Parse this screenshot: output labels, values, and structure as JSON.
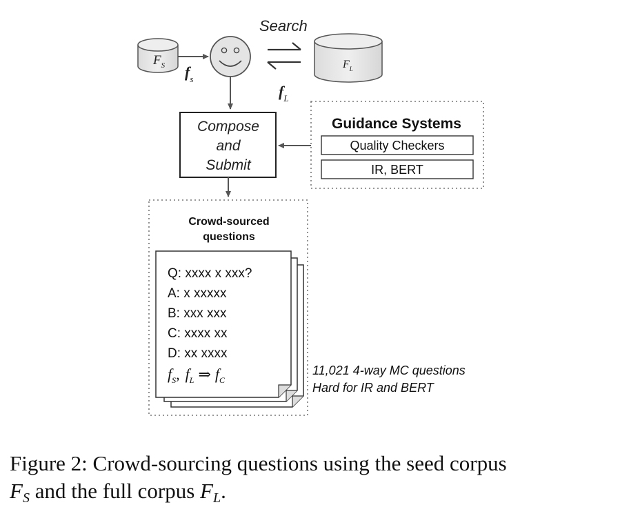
{
  "diagram": {
    "search_label": "Search",
    "seed_corpus": {
      "base": "F",
      "sub": "S"
    },
    "full_corpus": {
      "base": "F",
      "sub": "L"
    },
    "fact_s": {
      "base": "f",
      "sub": "s"
    },
    "fact_l": {
      "base": "f",
      "sub": "L"
    },
    "compose_lines": [
      "Compose",
      "and",
      "Submit"
    ],
    "guidance": {
      "title": "Guidance Systems",
      "items": [
        "Quality Checkers",
        "IR, BERT"
      ]
    },
    "crowd": {
      "title_lines": [
        "Crowd-sourced",
        "questions"
      ],
      "question_lines": [
        "Q: xxxx x xxx?",
        "A: x xxxxx",
        "B: xxx xxx",
        "C: xxxx xx",
        "D: xx xxxx"
      ],
      "facts_line": {
        "fs_base": "f",
        "fs_sub": "S",
        "sep": ",",
        "fl_base": "f",
        "fl_sub": "L",
        "arrow": "⇒",
        "fc_base": "f",
        "fc_sub": "C"
      }
    },
    "note_lines": [
      "11,021 4-way MC questions",
      "Hard for IR and BERT"
    ]
  },
  "caption": {
    "prefix": "Figure 2: Crowd-sourcing questions using the seed corpus",
    "fs_base": "F",
    "fs_sub": "S",
    "mid": " and the full corpus ",
    "fl_base": "F",
    "fl_sub": "L",
    "suffix": "."
  }
}
